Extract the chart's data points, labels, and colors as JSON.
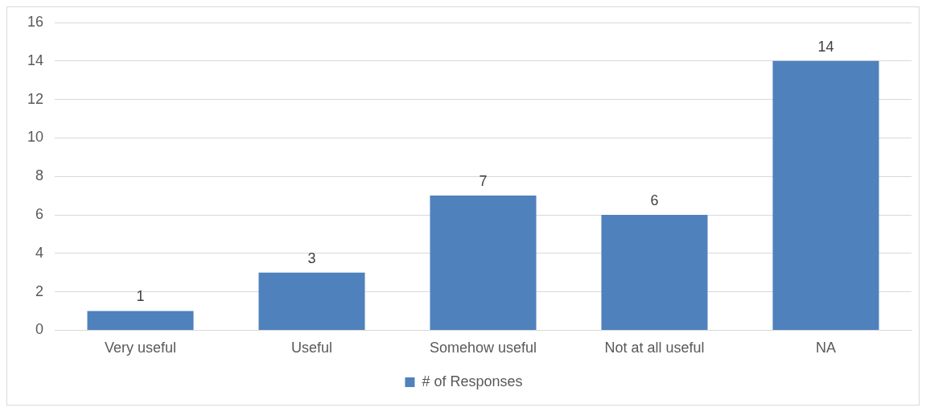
{
  "chart_data": {
    "type": "bar",
    "categories": [
      "Very useful",
      "Useful",
      "Somehow useful",
      "Not at all useful",
      "NA"
    ],
    "series": [
      {
        "name": "# of Responses",
        "color": "#4f81bd",
        "values": [
          1,
          3,
          7,
          6,
          14
        ]
      }
    ],
    "ylim": [
      0,
      16
    ],
    "yticks": [
      0,
      2,
      4,
      6,
      8,
      10,
      12,
      14,
      16
    ],
    "grid": "y",
    "legend": "bottom",
    "data_labels": true
  }
}
